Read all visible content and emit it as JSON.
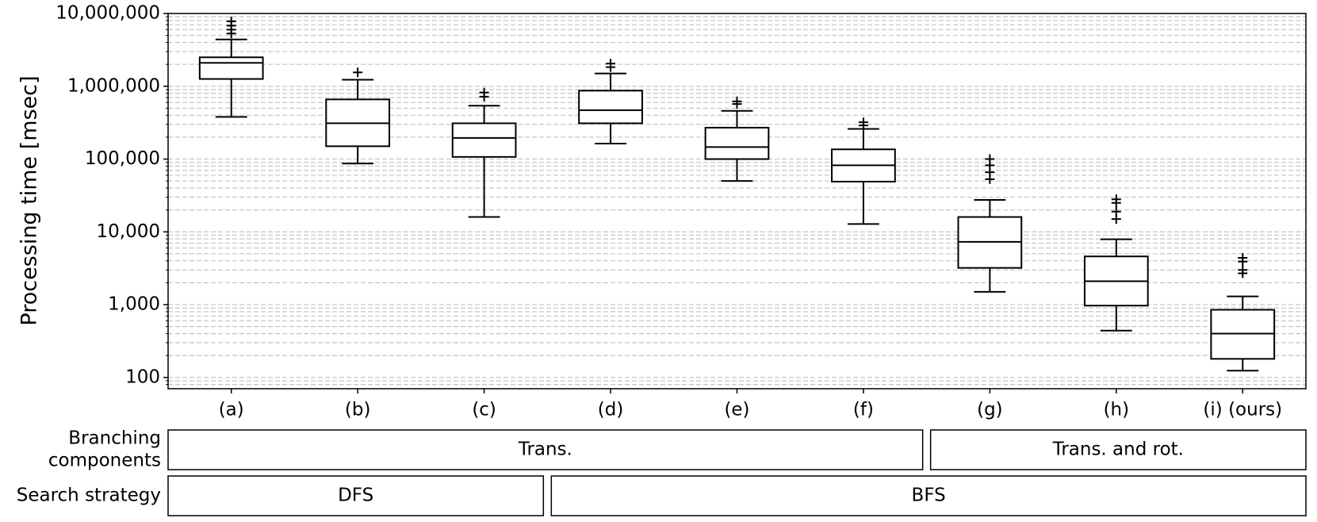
{
  "chart_data": {
    "type": "box",
    "y_label": "Processing time [msec]",
    "log_scale": true,
    "grid": true,
    "color": "#000000",
    "categories": [
      "(a)",
      "(b)",
      "(c)",
      "(d)",
      "(e)",
      "(f)",
      "(g)",
      "(h)",
      "(i) (ours)"
    ],
    "boxes": [
      {
        "whislo": 380000,
        "q1": 1260000,
        "med": 2100000,
        "q3": 2500000,
        "whishi": 4400000,
        "fliers": [
          7800000,
          6800000,
          6000000,
          5300000
        ]
      },
      {
        "whislo": 87000,
        "q1": 150000,
        "med": 310000,
        "q3": 660000,
        "whishi": 1230000,
        "fliers": [
          1550000
        ]
      },
      {
        "whislo": 16000,
        "q1": 107000,
        "med": 195000,
        "q3": 310000,
        "whishi": 540000,
        "fliers": [
          820000,
          720000
        ]
      },
      {
        "whislo": 163000,
        "q1": 310000,
        "med": 470000,
        "q3": 870000,
        "whishi": 1500000,
        "fliers": [
          2050000,
          1830000
        ]
      },
      {
        "whislo": 50000,
        "q1": 100000,
        "med": 146000,
        "q3": 270000,
        "whishi": 460000,
        "fliers": [
          620000,
          570000
        ]
      },
      {
        "whislo": 12800,
        "q1": 49000,
        "med": 82000,
        "q3": 136000,
        "whishi": 260000,
        "fliers": [
          320000,
          290000
        ]
      },
      {
        "whislo": 1500,
        "q1": 3200,
        "med": 7300,
        "q3": 16000,
        "whishi": 27500,
        "fliers": [
          100000,
          82000,
          66000,
          53000
        ]
      },
      {
        "whislo": 440,
        "q1": 970,
        "med": 2100,
        "q3": 4600,
        "whishi": 7900,
        "fliers": [
          28000,
          25000,
          19000,
          15000
        ]
      },
      {
        "whislo": 124,
        "q1": 180,
        "med": 400,
        "q3": 850,
        "whishi": 1300,
        "fliers": [
          4400,
          3900,
          3000,
          2700
        ]
      }
    ],
    "ylim": [
      70,
      10000000
    ],
    "yticks": [
      100,
      {
        "value": 1000,
        "label": "1,000"
      },
      {
        "value": 10000,
        "label": "10,000"
      },
      {
        "value": 100000,
        "label": "100,000"
      },
      {
        "value": 1000000,
        "label": "1,000,000"
      },
      {
        "value": 10000000,
        "label": "10,000,000"
      }
    ],
    "minor_yticks": [
      80,
      90,
      200,
      300,
      400,
      500,
      600,
      700,
      800,
      900,
      2000,
      3000,
      4000,
      5000,
      6000,
      7000,
      8000,
      9000,
      20000,
      30000,
      40000,
      50000,
      60000,
      70000,
      80000,
      90000,
      200000,
      300000,
      400000,
      500000,
      600000,
      700000,
      800000,
      900000,
      2000000,
      3000000,
      4000000,
      5000000,
      6000000,
      7000000,
      8000000,
      9000000
    ],
    "table": [
      {
        "label": [
          "Branching",
          "components"
        ],
        "groups": [
          {
            "label": "Trans.",
            "span": [
              "(a)",
              "(f)"
            ]
          },
          {
            "label": "Trans. and rot.",
            "span": [
              "(g)",
              "(i) (ours)"
            ]
          }
        ]
      },
      {
        "label": [
          "Search strategy"
        ],
        "groups": [
          {
            "label": "DFS",
            "span": [
              "(a)",
              "(c)"
            ]
          },
          {
            "label": "BFS",
            "span": [
              "(d)",
              "(i) (ours)"
            ]
          }
        ]
      }
    ]
  }
}
